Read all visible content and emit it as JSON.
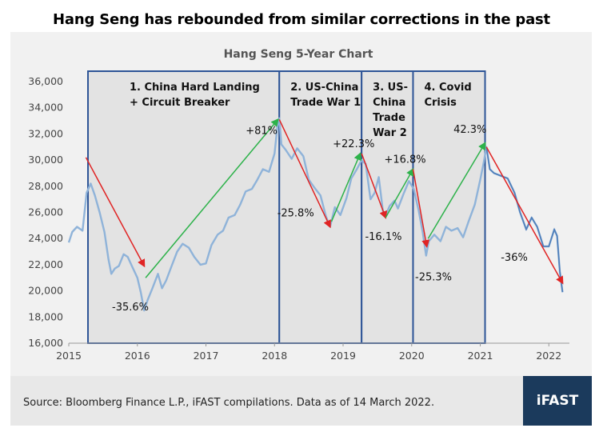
{
  "headline": "Hang Seng has rebounded from similar corrections in the past",
  "footer": {
    "source": "Source: Bloomberg Finance L.P., iFAST compilations. Data as of 14 March 2022.",
    "logo": "iFAST"
  },
  "colors": {
    "series": "#8fb3d9",
    "series_dark": "#3d6fb0",
    "up_arrow": "#2db24a",
    "down_arrow": "#e02424",
    "period_border": "#2e5597",
    "period_fill": "#e3e3e3",
    "plot_bg": "#f1f1f1"
  },
  "chart_data": {
    "type": "line",
    "title": "Hang Seng 5-Year Chart",
    "x_ticks": [
      "2015",
      "2016",
      "2017",
      "2018",
      "2019",
      "2020",
      "2021",
      "2022"
    ],
    "x_range": [
      2015.0,
      2022.3
    ],
    "y_ticks": [
      "16,000",
      "18,000",
      "20,000",
      "22,000",
      "24,000",
      "26,000",
      "28,000",
      "30,000",
      "32,000",
      "34,000",
      "36,000"
    ],
    "ylim": [
      16000,
      36000
    ],
    "grid": false,
    "series": [
      {
        "points": [
          [
            2015.0,
            23700
          ],
          [
            2015.05,
            24500
          ],
          [
            2015.12,
            24900
          ],
          [
            2015.2,
            24600
          ],
          [
            2015.26,
            27500
          ],
          [
            2015.32,
            28200
          ],
          [
            2015.38,
            27300
          ],
          [
            2015.45,
            26000
          ],
          [
            2015.52,
            24500
          ],
          [
            2015.58,
            22400
          ],
          [
            2015.62,
            21300
          ],
          [
            2015.67,
            21700
          ],
          [
            2015.73,
            21900
          ],
          [
            2015.8,
            22800
          ],
          [
            2015.86,
            22600
          ],
          [
            2015.92,
            21900
          ],
          [
            2016.0,
            21000
          ],
          [
            2016.05,
            19900
          ],
          [
            2016.1,
            18500
          ],
          [
            2016.15,
            19300
          ],
          [
            2016.22,
            20200
          ],
          [
            2016.3,
            21300
          ],
          [
            2016.36,
            20200
          ],
          [
            2016.42,
            20800
          ],
          [
            2016.5,
            21900
          ],
          [
            2016.58,
            23000
          ],
          [
            2016.66,
            23600
          ],
          [
            2016.75,
            23300
          ],
          [
            2016.83,
            22600
          ],
          [
            2016.92,
            22000
          ],
          [
            2017.0,
            22100
          ],
          [
            2017.08,
            23500
          ],
          [
            2017.17,
            24300
          ],
          [
            2017.25,
            24600
          ],
          [
            2017.33,
            25600
          ],
          [
            2017.42,
            25800
          ],
          [
            2017.5,
            26600
          ],
          [
            2017.58,
            27600
          ],
          [
            2017.67,
            27800
          ],
          [
            2017.75,
            28500
          ],
          [
            2017.83,
            29300
          ],
          [
            2017.92,
            29100
          ],
          [
            2018.0,
            30500
          ],
          [
            2018.04,
            32500
          ],
          [
            2018.07,
            33200
          ],
          [
            2018.1,
            31200
          ],
          [
            2018.16,
            30800
          ],
          [
            2018.25,
            30100
          ],
          [
            2018.33,
            30900
          ],
          [
            2018.42,
            30300
          ],
          [
            2018.5,
            28500
          ],
          [
            2018.58,
            27900
          ],
          [
            2018.67,
            27300
          ],
          [
            2018.75,
            25700
          ],
          [
            2018.81,
            24900
          ],
          [
            2018.88,
            26400
          ],
          [
            2018.96,
            25800
          ],
          [
            2019.05,
            27100
          ],
          [
            2019.12,
            28600
          ],
          [
            2019.2,
            29300
          ],
          [
            2019.27,
            30000
          ],
          [
            2019.33,
            29700
          ],
          [
            2019.4,
            27000
          ],
          [
            2019.46,
            27500
          ],
          [
            2019.52,
            28700
          ],
          [
            2019.58,
            26100
          ],
          [
            2019.62,
            25800
          ],
          [
            2019.68,
            26500
          ],
          [
            2019.75,
            26900
          ],
          [
            2019.8,
            26300
          ],
          [
            2019.88,
            27400
          ],
          [
            2019.96,
            28400
          ],
          [
            2020.03,
            27800
          ],
          [
            2020.1,
            26200
          ],
          [
            2020.16,
            24500
          ],
          [
            2020.21,
            22700
          ],
          [
            2020.25,
            23800
          ],
          [
            2020.33,
            24300
          ],
          [
            2020.42,
            23800
          ],
          [
            2020.5,
            24900
          ],
          [
            2020.58,
            24600
          ],
          [
            2020.67,
            24800
          ],
          [
            2020.75,
            24100
          ],
          [
            2020.83,
            25300
          ],
          [
            2020.92,
            26600
          ],
          [
            2021.0,
            28500
          ],
          [
            2021.05,
            29800
          ],
          [
            2021.09,
            31000
          ],
          [
            2021.14,
            29300
          ],
          [
            2021.2,
            29000
          ],
          [
            2021.3,
            28800
          ],
          [
            2021.4,
            28600
          ],
          [
            2021.5,
            27500
          ],
          [
            2021.58,
            26000
          ],
          [
            2021.67,
            24700
          ],
          [
            2021.75,
            25600
          ],
          [
            2021.83,
            24900
          ],
          [
            2021.92,
            23400
          ],
          [
            2022.0,
            23400
          ],
          [
            2022.08,
            24700
          ],
          [
            2022.12,
            24200
          ],
          [
            2022.16,
            21500
          ],
          [
            2022.2,
            19900
          ]
        ]
      }
    ],
    "periods": [
      {
        "label_lines": [
          "1. China Hard Landing",
          "+ Circuit Breaker"
        ],
        "x_start": 2015.28,
        "x_end": 2018.07
      },
      {
        "label_lines": [
          "2. US-China",
          "Trade War 1"
        ],
        "x_start": 2018.07,
        "x_end": 2019.27
      },
      {
        "label_lines": [
          "3. US-",
          "China",
          "Trade",
          "War 2"
        ],
        "x_start": 2019.27,
        "x_end": 2020.02
      },
      {
        "label_lines": [
          "4. Covid",
          "Crisis"
        ],
        "x_start": 2020.02,
        "x_end": 2021.07
      }
    ],
    "arrows": [
      {
        "direction": "down",
        "from": [
          2015.25,
          30200
        ],
        "to": [
          2016.1,
          21900
        ],
        "label": "-35.6%",
        "label_at": [
          2015.63,
          18500
        ]
      },
      {
        "direction": "up",
        "from": [
          2016.12,
          21000
        ],
        "to": [
          2018.05,
          33100
        ],
        "label": "+81%",
        "label_at": [
          2017.58,
          32000
        ]
      },
      {
        "direction": "down",
        "from": [
          2018.07,
          33100
        ],
        "to": [
          2018.81,
          24900
        ],
        "label": "-25.8%",
        "label_at": [
          2018.04,
          25700
        ]
      },
      {
        "direction": "up",
        "from": [
          2018.83,
          25300
        ],
        "to": [
          2019.25,
          30500
        ],
        "label": "+22.3%",
        "label_at": [
          2018.85,
          31000
        ]
      },
      {
        "direction": "down",
        "from": [
          2019.27,
          30500
        ],
        "to": [
          2019.62,
          25600
        ],
        "label": "-16.1%",
        "label_at": [
          2019.32,
          23900
        ]
      },
      {
        "direction": "up",
        "from": [
          2019.62,
          25600
        ],
        "to": [
          2020.02,
          29300
        ],
        "label": "+16.8%",
        "label_at": [
          2019.6,
          29800
        ]
      },
      {
        "direction": "down",
        "from": [
          2020.02,
          29300
        ],
        "to": [
          2020.22,
          23400
        ],
        "label": "-25.3%",
        "label_at": [
          2020.05,
          20800
        ]
      },
      {
        "direction": "up",
        "from": [
          2020.24,
          24000
        ],
        "to": [
          2021.07,
          31300
        ],
        "label": "42.3%",
        "label_at": [
          2020.61,
          32100
        ]
      },
      {
        "direction": "down",
        "from": [
          2021.09,
          31000
        ],
        "to": [
          2022.2,
          20600
        ],
        "label": "-36%",
        "label_at": [
          2021.3,
          22300
        ]
      }
    ]
  }
}
